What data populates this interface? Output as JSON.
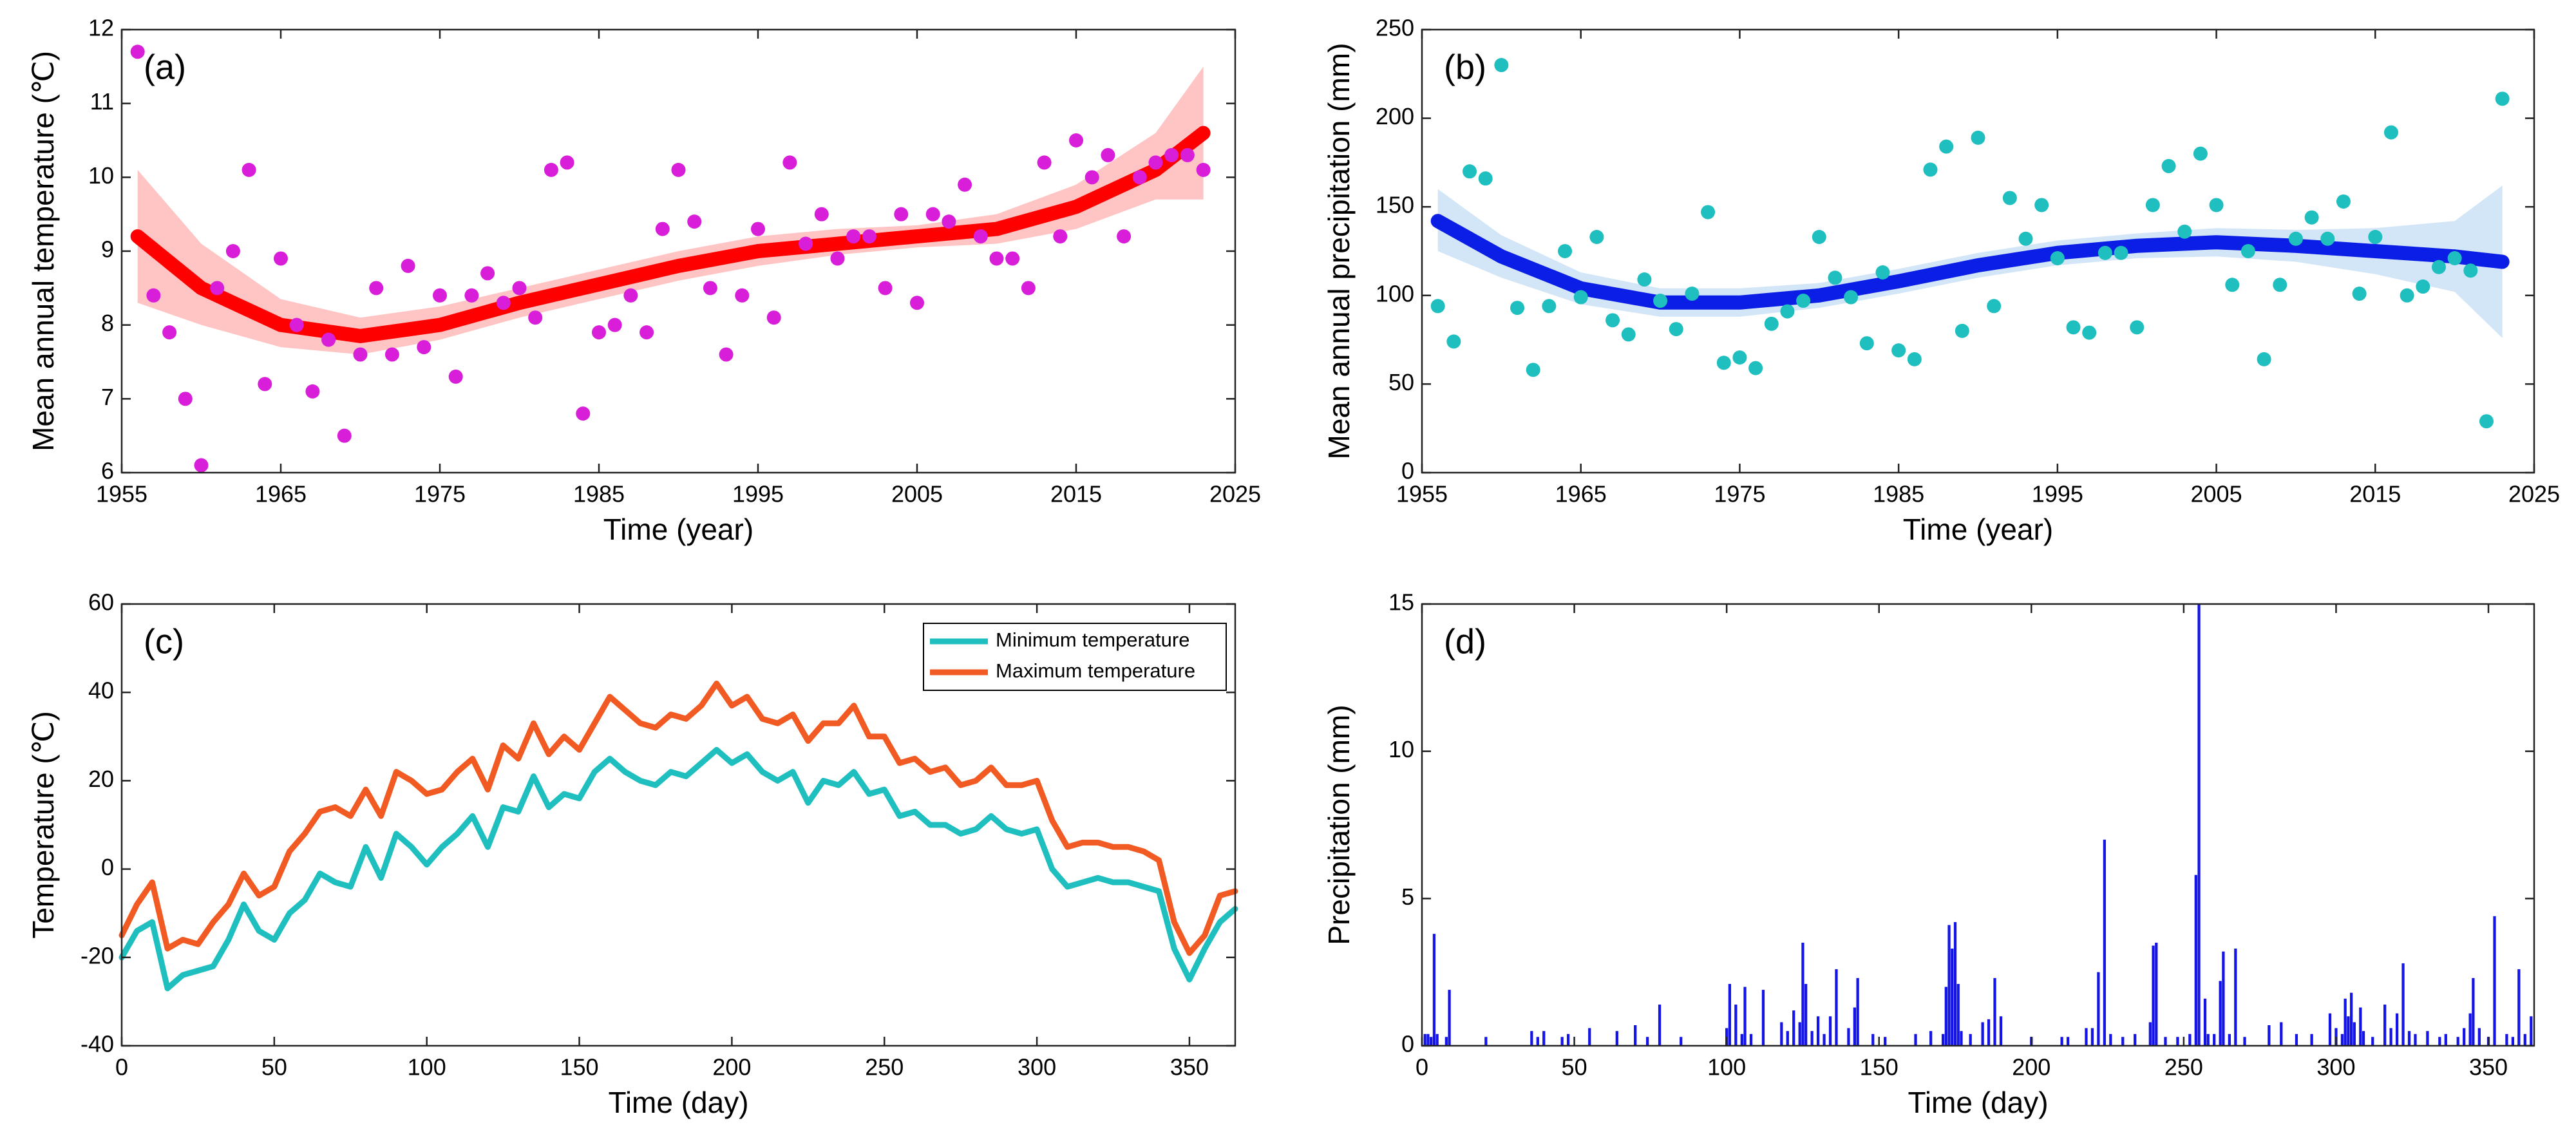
{
  "chart_data": [
    {
      "type": "scatter",
      "label": "(a)",
      "xlabel": "Time (year)",
      "ylabel": "Mean annual temperature (℃)",
      "color": "#d81ed8",
      "x": [
        1956,
        1957,
        1958,
        1959,
        1960,
        1961,
        1962,
        1963,
        1964,
        1965,
        1966,
        1967,
        1968,
        1969,
        1970,
        1971,
        1972,
        1973,
        1974,
        1975,
        1976,
        1977,
        1978,
        1979,
        1980,
        1981,
        1982,
        1983,
        1984,
        1985,
        1986,
        1987,
        1988,
        1989,
        1990,
        1991,
        1992,
        1993,
        1994,
        1995,
        1996,
        1997,
        1998,
        1999,
        2000,
        2001,
        2002,
        2003,
        2004,
        2005,
        2006,
        2007,
        2008,
        2009,
        2010,
        2011,
        2012,
        2013,
        2014,
        2015,
        2016,
        2017,
        2018,
        2019,
        2020,
        2021,
        2022,
        2023
      ],
      "values": [
        11.7,
        8.4,
        7.9,
        7.0,
        6.1,
        8.5,
        9.0,
        10.1,
        7.2,
        8.9,
        8.0,
        7.1,
        7.8,
        6.5,
        7.6,
        8.5,
        7.6,
        8.8,
        7.7,
        8.4,
        7.3,
        8.4,
        8.7,
        8.3,
        8.5,
        8.1,
        10.1,
        10.2,
        6.8,
        7.9,
        8.0,
        8.4,
        7.9,
        9.3,
        10.1,
        9.4,
        8.5,
        7.6,
        8.4,
        9.3,
        8.1,
        10.2,
        9.1,
        9.5,
        8.9,
        9.2,
        9.2,
        8.5,
        9.5,
        8.3,
        9.5,
        9.4,
        9.9,
        9.2,
        8.9,
        8.9,
        8.5,
        10.2,
        9.2,
        10.5,
        10.0,
        10.3,
        9.2,
        10.0,
        10.2,
        10.3,
        10.3,
        10.1
      ],
      "fit": {
        "color": "#ff0000",
        "band_color": "#ffc4c4",
        "x": [
          1956,
          1960,
          1965,
          1970,
          1975,
          1980,
          1985,
          1990,
          1995,
          2000,
          2005,
          2010,
          2015,
          2020,
          2023
        ],
        "values": [
          9.2,
          8.5,
          8.0,
          7.85,
          8.0,
          8.3,
          8.55,
          8.8,
          9.0,
          9.1,
          9.2,
          9.3,
          9.6,
          10.1,
          10.6
        ],
        "lower": [
          8.3,
          8.0,
          7.7,
          7.6,
          7.8,
          8.1,
          8.35,
          8.6,
          8.8,
          8.95,
          9.05,
          9.1,
          9.3,
          9.7,
          9.7
        ],
        "upper": [
          10.1,
          9.1,
          8.35,
          8.1,
          8.25,
          8.5,
          8.75,
          9.0,
          9.2,
          9.3,
          9.35,
          9.5,
          9.9,
          10.6,
          11.5
        ]
      },
      "xlim": [
        1955,
        2025
      ],
      "xticks": [
        1955,
        1965,
        1975,
        1985,
        1995,
        2005,
        2015,
        2025
      ],
      "ylim": [
        6,
        12
      ],
      "yticks": [
        6,
        7,
        8,
        9,
        10,
        11,
        12
      ]
    },
    {
      "type": "scatter",
      "label": "(b)",
      "xlabel": "Time (year)",
      "ylabel": "Mean annual precipitation (mm)",
      "color": "#1fbfbf",
      "x": [
        1956,
        1957,
        1958,
        1959,
        1960,
        1961,
        1962,
        1963,
        1964,
        1965,
        1966,
        1967,
        1968,
        1969,
        1970,
        1971,
        1972,
        1973,
        1974,
        1975,
        1976,
        1977,
        1978,
        1979,
        1980,
        1981,
        1982,
        1983,
        1984,
        1985,
        1986,
        1987,
        1988,
        1989,
        1990,
        1991,
        1992,
        1993,
        1994,
        1995,
        1996,
        1997,
        1998,
        1999,
        2000,
        2001,
        2002,
        2003,
        2004,
        2005,
        2006,
        2007,
        2008,
        2009,
        2010,
        2011,
        2012,
        2013,
        2014,
        2015,
        2016,
        2017,
        2018,
        2019,
        2020,
        2021,
        2022,
        2023
      ],
      "values": [
        94,
        74,
        170,
        166,
        230,
        93,
        58,
        94,
        125,
        99,
        133,
        86,
        78,
        109,
        97,
        81,
        101,
        147,
        62,
        65,
        59,
        84,
        91,
        97,
        133,
        110,
        99,
        73,
        113,
        69,
        64,
        171,
        184,
        80,
        189,
        94,
        155,
        132,
        151,
        121,
        82,
        79,
        124,
        124,
        82,
        151,
        173,
        136,
        180,
        151,
        106,
        125,
        64,
        106,
        132,
        144,
        132,
        153,
        101,
        133,
        192,
        100,
        105,
        116,
        121,
        114,
        29,
        211
      ],
      "fit": {
        "color": "#0a1ee6",
        "band_color": "#d2e6f8",
        "x": [
          1956,
          1960,
          1965,
          1970,
          1975,
          1980,
          1985,
          1990,
          1995,
          2000,
          2005,
          2010,
          2015,
          2020,
          2023
        ],
        "values": [
          142,
          122,
          104,
          96,
          96,
          100,
          108,
          117,
          124,
          128,
          130,
          128,
          125,
          122,
          119
        ],
        "lower": [
          125,
          110,
          95,
          88,
          88,
          93,
          101,
          110,
          117,
          121,
          122,
          119,
          112,
          102,
          76
        ],
        "upper": [
          160,
          134,
          113,
          104,
          104,
          107,
          115,
          124,
          131,
          135,
          138,
          137,
          138,
          142,
          162
        ]
      },
      "xlim": [
        1955,
        2025
      ],
      "xticks": [
        1955,
        1965,
        1975,
        1985,
        1995,
        2005,
        2015,
        2025
      ],
      "ylim": [
        0,
        250
      ],
      "yticks": [
        0,
        50,
        100,
        150,
        200,
        250
      ]
    },
    {
      "type": "line",
      "label": "(c)",
      "xlabel": "Time (day)",
      "ylabel": "Temperature (℃)",
      "legend": "upper right",
      "x": [
        0,
        5,
        10,
        15,
        20,
        25,
        30,
        35,
        40,
        45,
        50,
        55,
        60,
        65,
        70,
        75,
        80,
        85,
        90,
        95,
        100,
        105,
        110,
        115,
        120,
        125,
        130,
        135,
        140,
        145,
        150,
        155,
        160,
        165,
        170,
        175,
        180,
        185,
        190,
        195,
        200,
        205,
        210,
        215,
        220,
        225,
        230,
        235,
        240,
        245,
        250,
        255,
        260,
        265,
        270,
        275,
        280,
        285,
        290,
        295,
        300,
        305,
        310,
        315,
        320,
        325,
        330,
        335,
        340,
        345,
        350,
        355,
        360,
        365
      ],
      "series": [
        {
          "name": "Minimum temperature",
          "color": "#1fbfbf",
          "values": [
            -20,
            -14,
            -12,
            -27,
            -24,
            -23,
            -22,
            -16,
            -8,
            -14,
            -16,
            -10,
            -7,
            -1,
            -3,
            -4,
            5,
            -2,
            8,
            5,
            1,
            5,
            8,
            12,
            5,
            14,
            13,
            21,
            14,
            17,
            16,
            22,
            25,
            22,
            20,
            19,
            22,
            21,
            24,
            27,
            24,
            26,
            22,
            20,
            22,
            15,
            20,
            19,
            22,
            17,
            18,
            12,
            13,
            10,
            10,
            8,
            9,
            12,
            9,
            8,
            9,
            0,
            -4,
            -3,
            -2,
            -3,
            -3,
            -4,
            -5,
            -18,
            -25,
            -18,
            -12,
            -9
          ]
        },
        {
          "name": "Maximum temperature",
          "color": "#f15a22",
          "values": [
            -15,
            -8,
            -3,
            -18,
            -16,
            -17,
            -12,
            -8,
            -1,
            -6,
            -4,
            4,
            8,
            13,
            14,
            12,
            18,
            12,
            22,
            20,
            17,
            18,
            22,
            25,
            18,
            28,
            25,
            33,
            26,
            30,
            27,
            33,
            39,
            36,
            33,
            32,
            35,
            34,
            37,
            42,
            37,
            39,
            34,
            33,
            35,
            29,
            33,
            33,
            37,
            30,
            30,
            24,
            25,
            22,
            23,
            19,
            20,
            23,
            19,
            19,
            20,
            11,
            5,
            6,
            6,
            5,
            5,
            4,
            2,
            -12,
            -19,
            -15,
            -6,
            -5
          ]
        }
      ],
      "xlim": [
        0,
        365
      ],
      "xticks": [
        0,
        50,
        100,
        150,
        200,
        250,
        300,
        350
      ],
      "ylim": [
        -40,
        60
      ],
      "yticks": [
        -40,
        -20,
        0,
        20,
        40,
        60
      ]
    },
    {
      "type": "bar",
      "label": "(d)",
      "xlabel": "Time (day)",
      "ylabel": "Precipitation (mm)",
      "color": "#1414e6",
      "x": [
        1,
        2,
        3,
        4,
        5,
        8,
        9,
        21,
        36,
        38,
        40,
        46,
        48,
        55,
        64,
        70,
        74,
        78,
        85,
        100,
        101,
        103,
        105,
        106,
        108,
        112,
        118,
        120,
        122,
        124,
        125,
        126,
        128,
        130,
        132,
        134,
        136,
        140,
        142,
        143,
        148,
        152,
        162,
        167,
        171,
        172,
        173,
        174,
        175,
        176,
        177,
        180,
        184,
        186,
        188,
        190,
        200,
        210,
        212,
        218,
        220,
        222,
        224,
        226,
        230,
        234,
        239,
        240,
        241,
        244,
        248,
        252,
        254,
        255,
        257,
        258,
        260,
        262,
        263,
        265,
        267,
        270,
        278,
        282,
        287,
        292,
        298,
        300,
        302,
        303,
        304,
        305,
        306,
        308,
        309,
        312,
        316,
        318,
        320,
        322,
        324,
        326,
        330,
        334,
        336,
        340,
        342,
        344,
        345,
        347,
        350,
        352,
        356,
        358,
        360,
        362,
        364
      ],
      "values": [
        0.4,
        0.4,
        0.3,
        3.8,
        0.4,
        0.3,
        1.9,
        0.3,
        0.5,
        0.3,
        0.5,
        0.3,
        0.4,
        0.6,
        0.5,
        0.7,
        0.3,
        1.4,
        0.3,
        0.6,
        2.1,
        1.4,
        0.4,
        2.0,
        0.4,
        1.9,
        0.8,
        0.5,
        1.2,
        0.8,
        3.5,
        2.1,
        0.5,
        1.0,
        0.4,
        1.0,
        2.6,
        0.6,
        1.3,
        2.3,
        0.4,
        0.3,
        0.4,
        0.5,
        0.4,
        2.0,
        4.1,
        3.3,
        4.2,
        2.1,
        0.5,
        0.4,
        0.8,
        0.9,
        2.3,
        1.0,
        0.3,
        0.3,
        0.3,
        0.6,
        0.6,
        2.5,
        7.0,
        0.4,
        0.3,
        0.4,
        0.8,
        3.4,
        3.5,
        0.3,
        0.3,
        0.4,
        5.8,
        15,
        1.6,
        0.4,
        0.4,
        2.2,
        3.2,
        0.4,
        3.3,
        0.3,
        0.7,
        0.8,
        0.4,
        0.4,
        1.1,
        0.6,
        0.4,
        1.6,
        1.0,
        1.8,
        0.8,
        1.3,
        0.5,
        0.3,
        1.4,
        0.6,
        1.1,
        2.8,
        0.5,
        0.4,
        0.5,
        0.3,
        0.4,
        0.3,
        0.6,
        1.1,
        2.3,
        0.6,
        0.3,
        4.4,
        0.4,
        0.3,
        2.6,
        0.4,
        1.0
      ],
      "xlim": [
        0,
        365
      ],
      "xticks": [
        0,
        50,
        100,
        150,
        200,
        250,
        300,
        350
      ],
      "ylim": [
        0,
        15
      ],
      "yticks": [
        0,
        5,
        10,
        15
      ]
    }
  ]
}
